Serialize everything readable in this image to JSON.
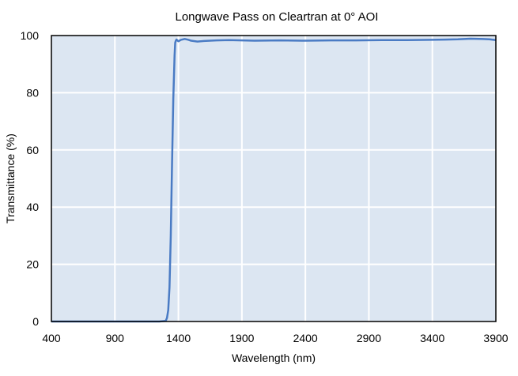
{
  "chart_data": {
    "type": "line",
    "title": "Longwave Pass on Cleartran at 0° AOI",
    "xlabel": "Wavelength (nm)",
    "ylabel": "Transmittance (%)",
    "xlim": [
      400,
      3900
    ],
    "ylim": [
      0,
      100
    ],
    "xticks": [
      400,
      900,
      1400,
      1900,
      2400,
      2900,
      3400,
      3900
    ],
    "yticks": [
      0,
      20,
      40,
      60,
      80,
      100
    ],
    "grid": true,
    "plot_background": "#dce6f2",
    "grid_color": "#ffffff",
    "series": [
      {
        "color": "#4a7bc4",
        "x": [
          400,
          900,
          1250,
          1300,
          1310,
          1320,
          1330,
          1340,
          1350,
          1360,
          1370,
          1375,
          1380,
          1385,
          1390,
          1395,
          1400,
          1420,
          1450,
          1480,
          1500,
          1550,
          1600,
          1700,
          1800,
          1900,
          2000,
          2200,
          2400,
          2600,
          2800,
          3000,
          3200,
          3400,
          3500,
          3600,
          3700,
          3800,
          3850,
          3900
        ],
        "y": [
          0,
          0,
          0,
          0.2,
          1.2,
          4,
          12,
          30,
          55,
          78,
          93,
          97.5,
          98.2,
          98.6,
          98.4,
          98.2,
          98.0,
          98.5,
          98.8,
          98.5,
          98.2,
          97.9,
          98.1,
          98.3,
          98.4,
          98.3,
          98.2,
          98.3,
          98.2,
          98.3,
          98.3,
          98.4,
          98.4,
          98.5,
          98.6,
          98.7,
          98.9,
          98.8,
          98.7,
          98.4
        ]
      }
    ]
  }
}
